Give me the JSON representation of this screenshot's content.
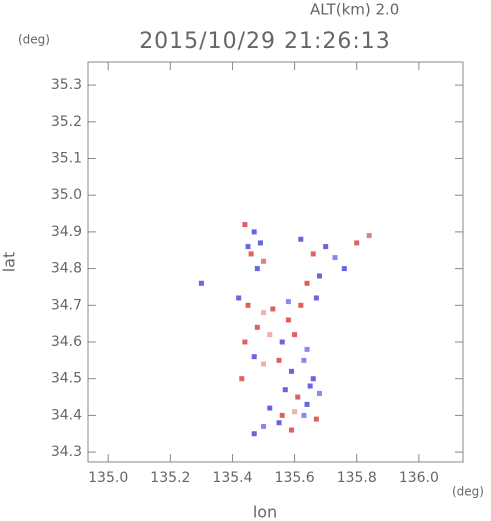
{
  "chart_data": {
    "type": "scatter",
    "title": "2015/10/29 21:26:13",
    "subtitle": "ALT(km)  2.0",
    "x_label": "lon",
    "y_label": "lat",
    "x_unit": "(deg)",
    "y_unit": "(deg)",
    "xlim": [
      134.935,
      136.142
    ],
    "ylim": [
      34.273,
      35.363
    ],
    "xticks": [
      {
        "value": 135.0,
        "label": "135.0"
      },
      135.2,
      135.4,
      135.6,
      135.8,
      {
        "value": 136.0,
        "label": "136.0"
      }
    ],
    "yticks": [
      35.3,
      35.2,
      35.1,
      {
        "value": 35.0,
        "label": "35.0"
      },
      34.9,
      34.8,
      34.7,
      34.6,
      34.5,
      34.4,
      34.3
    ],
    "x": [
      135.44,
      135.47,
      135.49,
      135.46,
      135.48,
      135.45,
      135.5,
      135.62,
      135.66,
      135.7,
      135.73,
      135.76,
      135.8,
      135.84,
      135.68,
      135.64,
      135.3,
      135.42,
      135.45,
      135.5,
      135.53,
      135.58,
      135.62,
      135.67,
      135.48,
      135.52,
      135.56,
      135.6,
      135.64,
      135.44,
      135.47,
      135.5,
      135.55,
      135.59,
      135.63,
      135.66,
      135.57,
      135.61,
      135.65,
      135.68,
      135.52,
      135.56,
      135.6,
      135.64,
      135.67,
      135.5,
      135.55,
      135.59,
      135.63,
      135.47,
      135.43,
      135.58
    ],
    "y": [
      34.92,
      34.9,
      34.87,
      34.84,
      34.8,
      34.86,
      34.82,
      34.88,
      34.84,
      34.86,
      34.83,
      34.8,
      34.87,
      34.89,
      34.78,
      34.76,
      34.76,
      34.72,
      34.7,
      34.68,
      34.69,
      34.71,
      34.7,
      34.72,
      34.64,
      34.62,
      34.6,
      34.62,
      34.58,
      34.6,
      34.56,
      34.54,
      34.55,
      34.52,
      34.55,
      34.5,
      34.47,
      34.45,
      34.48,
      34.46,
      34.42,
      34.4,
      34.41,
      34.43,
      34.39,
      34.37,
      34.38,
      34.36,
      34.4,
      34.35,
      34.5,
      34.66
    ],
    "colors": [
      "#e06060",
      "#6666dd",
      "#6666dd",
      "#e06060",
      "#6666dd",
      "#6666dd",
      "#e08080",
      "#6666dd",
      "#e06060",
      "#6666dd",
      "#8888ee",
      "#6666dd",
      "#e06060",
      "#e08080",
      "#6666dd",
      "#e06060",
      "#6666dd",
      "#6666dd",
      "#e06060",
      "#f0b0b0",
      "#e06060",
      "#8888ee",
      "#e06060",
      "#6666dd",
      "#e06060",
      "#f0b0b0",
      "#6666dd",
      "#e06060",
      "#8888ee",
      "#e06060",
      "#6666dd",
      "#f0b0b0",
      "#e06060",
      "#6666dd",
      "#8888ee",
      "#6666dd",
      "#6666dd",
      "#e06060",
      "#6666dd",
      "#8888ee",
      "#6666dd",
      "#e06060",
      "#f0b0b0",
      "#6666dd",
      "#e06060",
      "#8888ee",
      "#6666dd",
      "#e06060",
      "#8888ee",
      "#6666dd",
      "#e06060",
      "#e06060"
    ]
  }
}
